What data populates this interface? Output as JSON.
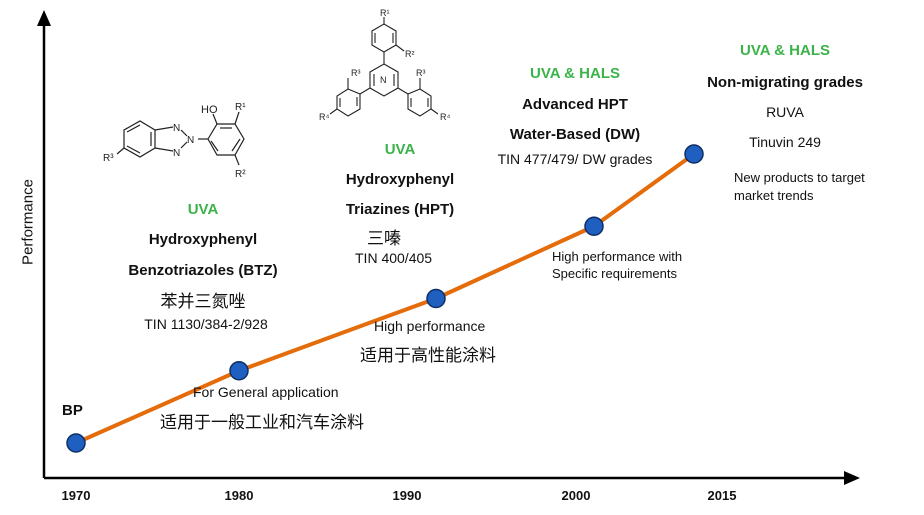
{
  "axis": {
    "y_label": "Performance"
  },
  "years": [
    "1970",
    "1980",
    "1990",
    "2000",
    "2015"
  ],
  "colors": {
    "line": "#e46c0a",
    "node": "#1f5fbf",
    "highlight": "#3cb34a",
    "axis": "#000000"
  },
  "chart_data": {
    "type": "line",
    "x": [
      "1970",
      "1980",
      "1990",
      "2000",
      "2015"
    ],
    "series": [
      {
        "values": [
          1,
          2,
          3,
          4,
          5
        ]
      }
    ]
  },
  "stages": {
    "bp": {
      "label": "BP"
    },
    "btz": {
      "class": "UVA",
      "name_line1": "Hydroxyphenyl",
      "name_line2": "Benzotriazoles (BTZ)",
      "name_cn": "苯并三氮唑",
      "products": "TIN 1130/384-2/928",
      "note_en": "For General application",
      "note_cn": "适用于一般工业和汽车涂料"
    },
    "hpt": {
      "class": "UVA",
      "name_line1": "Hydroxyphenyl",
      "name_line2": "Triazines (HPT)",
      "name_cn": "三嗪",
      "products": "TIN 400/405",
      "note_en": "High performance",
      "note_cn": "适用于高性能涂料"
    },
    "advanced": {
      "class": "UVA & HALS",
      "name_line1": "Advanced HPT",
      "name_line2": "Water-Based (DW)",
      "products": "TIN 477/479/ DW grades",
      "note_line1": "High performance with",
      "note_line2": "Specific requirements"
    },
    "nonmig": {
      "class": "UVA & HALS",
      "name_line1": "Non-migrating grades",
      "product1": "RUVA",
      "product2": "Tinuvin 249",
      "note_line1": "New products to target",
      "note_line2": "market trends"
    }
  },
  "structures": {
    "btz": {
      "oh": "HO",
      "r1": "R¹",
      "r2": "R²",
      "r3": "R³",
      "n1": "N",
      "n2": "N",
      "n3": "N"
    },
    "hpt": {
      "r1": "R¹",
      "r2": "R²",
      "r3a": "R³",
      "r3b": "R³",
      "r4a": "R⁴",
      "r4b": "R⁴",
      "n": "N"
    }
  }
}
